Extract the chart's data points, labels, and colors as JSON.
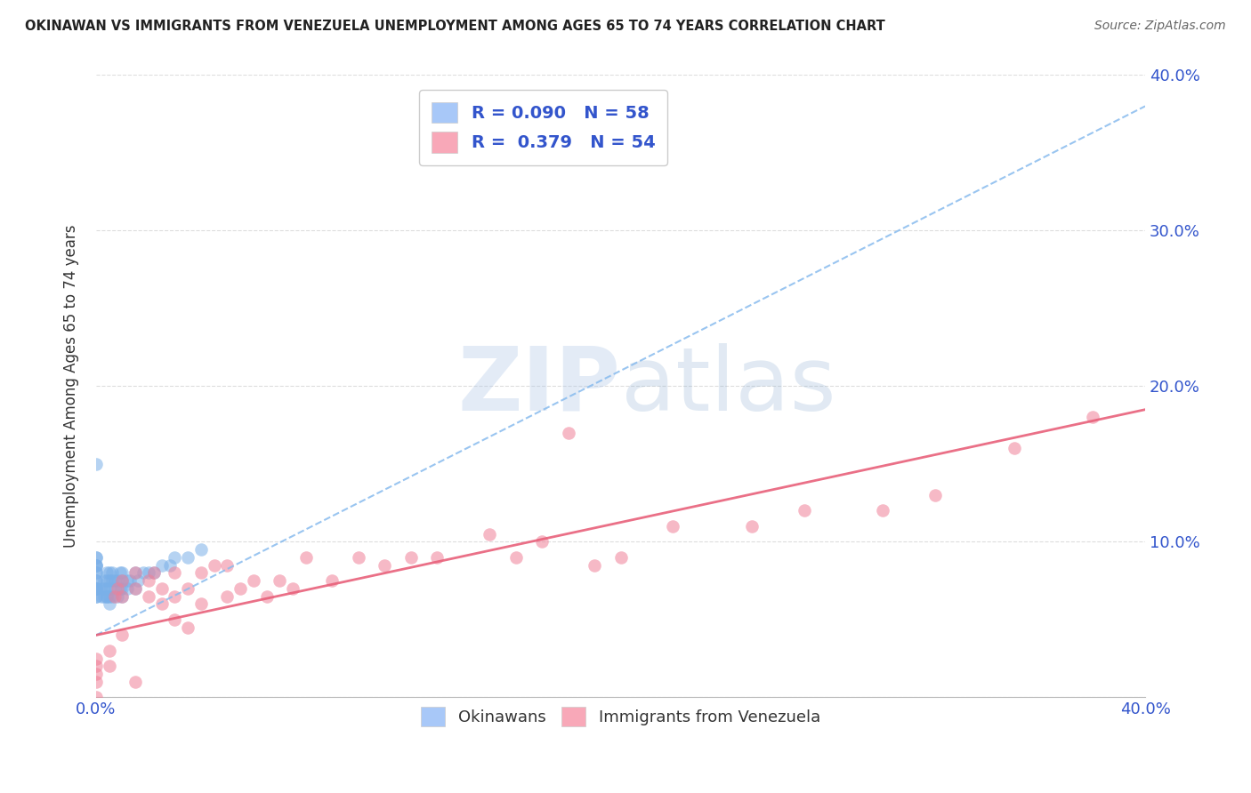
{
  "title": "OKINAWAN VS IMMIGRANTS FROM VENEZUELA UNEMPLOYMENT AMONG AGES 65 TO 74 YEARS CORRELATION CHART",
  "source": "Source: ZipAtlas.com",
  "ylabel": "Unemployment Among Ages 65 to 74 years",
  "xlim": [
    0.0,
    0.4
  ],
  "ylim": [
    0.0,
    0.4
  ],
  "series1_label": "Okinawans",
  "series2_label": "Immigrants from Venezuela",
  "series1_color": "#7ab0e8",
  "series2_color": "#f08098",
  "series1_R": 0.09,
  "series1_N": 58,
  "series2_R": 0.379,
  "series2_N": 54,
  "trendline1_color": "#88bbee",
  "trendline2_color": "#e8607a",
  "watermark_zip": "ZIP",
  "watermark_atlas": "atlas",
  "background_color": "#ffffff",
  "grid_color": "#dddddd",
  "legend_patch1_color": "#a8c8f8",
  "legend_patch2_color": "#f8a8b8",
  "series1_x": [
    0.0,
    0.0,
    0.0,
    0.0,
    0.0,
    0.0,
    0.0,
    0.0,
    0.0,
    0.0,
    0.0,
    0.0,
    0.0,
    0.0,
    0.0,
    0.0,
    0.002,
    0.002,
    0.003,
    0.003,
    0.003,
    0.004,
    0.004,
    0.004,
    0.004,
    0.004,
    0.005,
    0.005,
    0.005,
    0.005,
    0.005,
    0.006,
    0.006,
    0.006,
    0.007,
    0.007,
    0.008,
    0.008,
    0.009,
    0.009,
    0.01,
    0.01,
    0.01,
    0.01,
    0.012,
    0.012,
    0.013,
    0.015,
    0.015,
    0.016,
    0.018,
    0.02,
    0.022,
    0.025,
    0.028,
    0.03,
    0.035,
    0.04
  ],
  "series1_y": [
    0.065,
    0.065,
    0.07,
    0.07,
    0.07,
    0.07,
    0.075,
    0.075,
    0.08,
    0.08,
    0.085,
    0.085,
    0.085,
    0.09,
    0.09,
    0.15,
    0.065,
    0.07,
    0.065,
    0.07,
    0.075,
    0.065,
    0.065,
    0.07,
    0.075,
    0.08,
    0.06,
    0.065,
    0.07,
    0.075,
    0.08,
    0.065,
    0.075,
    0.08,
    0.07,
    0.075,
    0.065,
    0.075,
    0.07,
    0.08,
    0.065,
    0.07,
    0.075,
    0.08,
    0.07,
    0.075,
    0.075,
    0.07,
    0.08,
    0.075,
    0.08,
    0.08,
    0.08,
    0.085,
    0.085,
    0.09,
    0.09,
    0.095
  ],
  "series2_x": [
    0.0,
    0.0,
    0.0,
    0.0,
    0.0,
    0.005,
    0.005,
    0.007,
    0.008,
    0.01,
    0.01,
    0.01,
    0.015,
    0.015,
    0.015,
    0.02,
    0.02,
    0.022,
    0.025,
    0.025,
    0.03,
    0.03,
    0.03,
    0.035,
    0.035,
    0.04,
    0.04,
    0.045,
    0.05,
    0.05,
    0.055,
    0.06,
    0.065,
    0.07,
    0.075,
    0.08,
    0.09,
    0.1,
    0.11,
    0.12,
    0.13,
    0.15,
    0.16,
    0.17,
    0.18,
    0.19,
    0.2,
    0.22,
    0.25,
    0.27,
    0.3,
    0.32,
    0.35,
    0.38
  ],
  "series2_y": [
    0.0,
    0.01,
    0.015,
    0.02,
    0.025,
    0.02,
    0.03,
    0.065,
    0.07,
    0.04,
    0.065,
    0.075,
    0.01,
    0.07,
    0.08,
    0.065,
    0.075,
    0.08,
    0.06,
    0.07,
    0.05,
    0.065,
    0.08,
    0.045,
    0.07,
    0.06,
    0.08,
    0.085,
    0.065,
    0.085,
    0.07,
    0.075,
    0.065,
    0.075,
    0.07,
    0.09,
    0.075,
    0.09,
    0.085,
    0.09,
    0.09,
    0.105,
    0.09,
    0.1,
    0.17,
    0.085,
    0.09,
    0.11,
    0.11,
    0.12,
    0.12,
    0.13,
    0.16,
    0.18
  ],
  "trendline1_x": [
    0.0,
    0.4
  ],
  "trendline1_y": [
    0.04,
    0.38
  ],
  "trendline2_x": [
    0.0,
    0.4
  ],
  "trendline2_y": [
    0.04,
    0.185
  ]
}
